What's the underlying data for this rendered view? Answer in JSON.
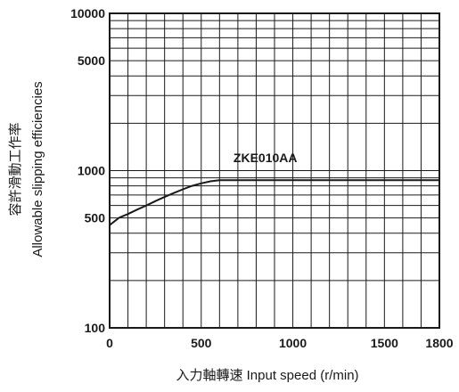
{
  "chart_data": {
    "type": "line",
    "xlabel": "入力軸轉速 Input speed (r/min)",
    "ylabel_ja": "容許滑動工作率",
    "ylabel_en": "Allowable slipping efficiencies",
    "xlim": [
      0,
      1800
    ],
    "ylim": [
      100,
      10000
    ],
    "y_scale": "log",
    "grid": true,
    "x_ticks": [
      0,
      500,
      1000,
      1500,
      1800
    ],
    "x_tick_labels": [
      "0",
      "500",
      "1000",
      "1500",
      "1800"
    ],
    "y_ticks": [
      100,
      500,
      1000,
      5000,
      10000
    ],
    "y_tick_labels": [
      "100",
      "500",
      "1000",
      "5000",
      "10000"
    ],
    "series": [
      {
        "name": "ZKE010AA",
        "x": [
          0,
          50,
          100,
          150,
          200,
          250,
          300,
          350,
          400,
          450,
          500,
          550,
          600,
          700,
          800,
          1000,
          1200,
          1400,
          1600,
          1800
        ],
        "y": [
          450,
          500,
          530,
          565,
          600,
          640,
          680,
          720,
          760,
          800,
          830,
          855,
          870,
          870,
          870,
          870,
          870,
          870,
          870,
          870
        ]
      }
    ]
  }
}
